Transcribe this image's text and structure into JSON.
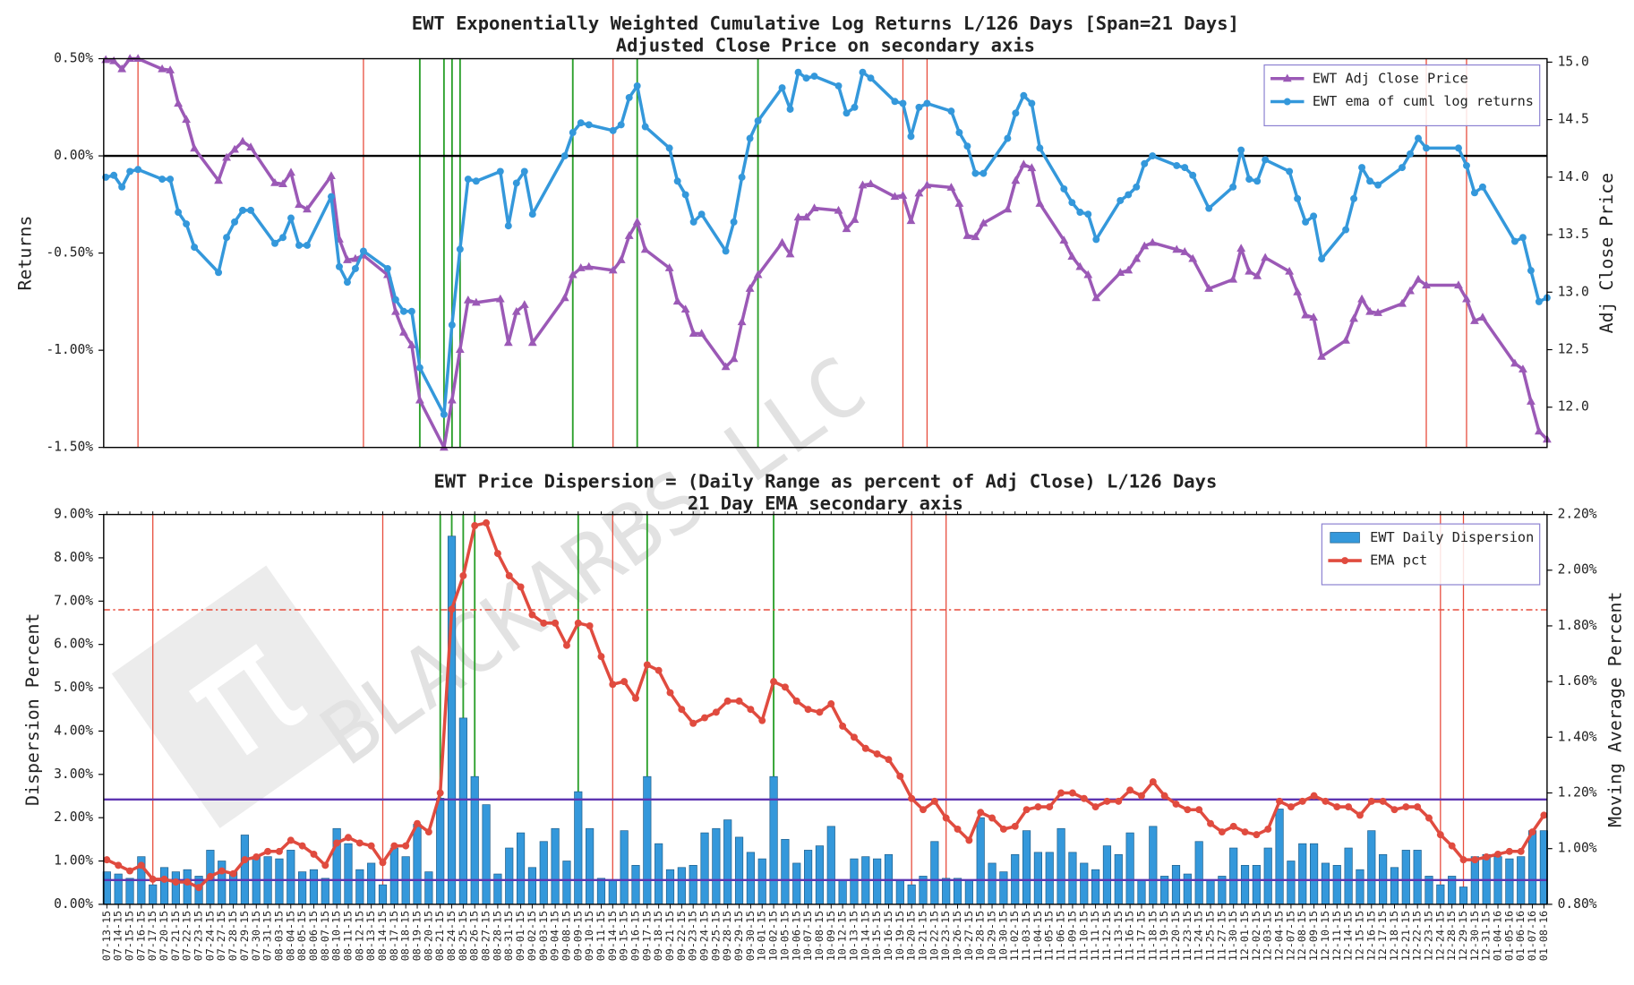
{
  "chart_data": [
    {
      "type": "line",
      "title": "EWT Exponentially Weighted Cumulative Log Returns L/126 Days [Span=21 Days]",
      "subtitle": "Adjusted Close Price on secondary axis",
      "ylabel": "Returns",
      "y2label": "Adj Close Price",
      "ylim": [
        -1.5,
        0.5
      ],
      "yticks": [
        {
          "value": -1.5,
          "label": "-1.50%"
        },
        {
          "value": -1,
          "label": "-1.00%"
        },
        {
          "value": -0.5,
          "label": "-0.50%"
        },
        {
          "value": 0,
          "label": "0.00%"
        },
        {
          "value": 0.5,
          "label": "0.50%"
        }
      ],
      "y2lim": [
        11.65,
        15.03
      ],
      "y2ticks": [
        {
          "value": 12,
          "label": "12.0"
        },
        {
          "value": 12.5,
          "label": "12.5"
        },
        {
          "value": 13,
          "label": "13.0"
        },
        {
          "value": 13.5,
          "label": "13.5"
        },
        {
          "value": 14,
          "label": "14.0"
        },
        {
          "value": 14.5,
          "label": "14.5"
        },
        {
          "value": 15,
          "label": "15.0"
        }
      ],
      "legend": "upper right",
      "hlines": [
        {
          "value": 0,
          "color": "#000000"
        }
      ],
      "vlines": [
        {
          "color": "#e74c3c",
          "x": [
            "07-17-15",
            "08-14-15",
            "09-14-15",
            "10-20-15",
            "10-23-15",
            "12-24-15",
            "12-29-15"
          ]
        },
        {
          "color": "#2ca02c",
          "x": [
            "08-21-15",
            "08-24-15",
            "08-25-15",
            "08-26-15",
            "09-09-15",
            "09-17-15",
            "10-02-15"
          ]
        }
      ],
      "series": [
        {
          "name": "EWT Adj Close Price",
          "color": "#9b59b6",
          "marker": "triangle",
          "axis": "y2",
          "values": [
            15.02,
            15.01,
            14.94,
            15.03,
            15.03,
            14.94,
            14.93,
            14.64,
            14.5,
            14.25,
            13.97,
            14.17,
            14.24,
            14.31,
            14.26,
            13.95,
            13.94,
            14.04,
            13.76,
            13.72,
            14.01,
            13.46,
            13.28,
            13.29,
            13.32,
            13.15,
            12.83,
            12.65,
            12.54,
            12.06,
            11.65,
            12.06,
            12.5,
            12.93,
            12.91,
            12.94,
            12.56,
            12.83,
            12.89,
            12.56,
            12.95,
            13.15,
            13.21,
            13.22,
            13.19,
            13.28,
            13.49,
            13.61,
            13.37,
            13.21,
            12.92,
            12.85,
            12.64,
            12.64,
            12.35,
            12.42,
            12.74,
            13.03,
            13.15,
            13.43,
            13.33,
            13.65,
            13.65,
            13.73,
            13.71,
            13.55,
            13.63,
            13.93,
            13.94,
            13.83,
            13.84,
            13.62,
            13.86,
            13.93,
            13.91,
            13.77,
            13.49,
            13.48,
            13.6,
            13.72,
            13.97,
            14.11,
            14.08,
            13.77,
            13.45,
            13.31,
            13.22,
            13.15,
            12.95,
            13.17,
            13.19,
            13.29,
            13.4,
            13.43,
            13.37,
            13.35,
            13.29,
            13.03,
            13.11,
            13.38,
            13.18,
            13.14,
            13.3,
            13.18,
            13.0,
            12.8,
            12.78,
            12.44,
            12.58,
            12.77,
            12.94,
            12.83,
            12.82,
            12.9,
            13.01,
            13.11,
            13.06,
            13.06,
            12.94,
            12.75,
            12.78,
            12.38,
            12.33,
            12.05,
            11.79,
            11.72
          ]
        },
        {
          "name": "EWT ema of cuml log returns",
          "color": "#3498db",
          "marker": "circle",
          "values": [
            -0.11,
            -0.1,
            -0.16,
            -0.08,
            -0.07,
            -0.12,
            -0.12,
            -0.29,
            -0.35,
            -0.47,
            -0.6,
            -0.42,
            -0.34,
            -0.28,
            -0.28,
            -0.45,
            -0.42,
            -0.32,
            -0.46,
            -0.46,
            -0.21,
            -0.57,
            -0.65,
            -0.58,
            -0.49,
            -0.58,
            -0.74,
            -0.8,
            -0.8,
            -1.09,
            -1.33,
            -0.87,
            -0.48,
            -0.12,
            -0.13,
            -0.08,
            -0.36,
            -0.14,
            -0.08,
            -0.3,
            0.0,
            0.12,
            0.17,
            0.16,
            0.13,
            0.16,
            0.3,
            0.36,
            0.15,
            0.04,
            -0.13,
            -0.2,
            -0.34,
            -0.3,
            -0.49,
            -0.34,
            -0.11,
            0.09,
            0.18,
            0.35,
            0.24,
            0.43,
            0.4,
            0.41,
            0.36,
            0.22,
            0.25,
            0.43,
            0.4,
            0.28,
            0.27,
            0.1,
            0.25,
            0.27,
            0.23,
            0.12,
            0.05,
            -0.09,
            -0.09,
            0.09,
            0.22,
            0.31,
            0.27,
            0.04,
            -0.17,
            -0.24,
            -0.29,
            -0.3,
            -0.43,
            -0.23,
            -0.2,
            -0.16,
            -0.04,
            0.0,
            -0.05,
            -0.06,
            -0.1,
            -0.27,
            -0.16,
            0.03,
            -0.12,
            -0.13,
            -0.02,
            -0.08,
            -0.22,
            -0.34,
            -0.31,
            -0.53,
            -0.38,
            -0.22,
            -0.06,
            -0.13,
            -0.15,
            -0.06,
            0.01,
            0.09,
            0.04,
            0.04,
            -0.05,
            -0.19,
            -0.16,
            -0.44,
            -0.42,
            -0.59,
            -0.75,
            -0.73
          ]
        }
      ]
    },
    {
      "type": "bar",
      "title": "EWT Price Dispersion = (Daily Range as percent of Adj Close) L/126 Days",
      "subtitle": "21 Day EMA secondary axis",
      "ylabel": "Dispersion Percent",
      "y2label": "Moving Average Percent",
      "watermark": "BLACKARBS LLC",
      "categories": [
        "07-13-15",
        "07-14-15",
        "07-15-15",
        "07-16-15",
        "07-17-15",
        "07-20-15",
        "07-21-15",
        "07-22-15",
        "07-23-15",
        "07-24-15",
        "07-27-15",
        "07-28-15",
        "07-29-15",
        "07-30-15",
        "07-31-15",
        "08-03-15",
        "08-04-15",
        "08-05-15",
        "08-06-15",
        "08-07-15",
        "08-10-15",
        "08-11-15",
        "08-12-15",
        "08-13-15",
        "08-14-15",
        "08-17-15",
        "08-18-15",
        "08-19-15",
        "08-20-15",
        "08-21-15",
        "08-24-15",
        "08-25-15",
        "08-26-15",
        "08-27-15",
        "08-28-15",
        "08-31-15",
        "09-01-15",
        "09-02-15",
        "09-03-15",
        "09-04-15",
        "09-08-15",
        "09-09-15",
        "09-10-15",
        "09-11-15",
        "09-14-15",
        "09-15-15",
        "09-16-15",
        "09-17-15",
        "09-18-15",
        "09-21-15",
        "09-22-15",
        "09-23-15",
        "09-24-15",
        "09-25-15",
        "09-28-15",
        "09-29-15",
        "09-30-15",
        "10-01-15",
        "10-02-15",
        "10-05-15",
        "10-06-15",
        "10-07-15",
        "10-08-15",
        "10-09-15",
        "10-12-15",
        "10-13-15",
        "10-14-15",
        "10-15-15",
        "10-16-15",
        "10-19-15",
        "10-20-15",
        "10-21-15",
        "10-22-15",
        "10-23-15",
        "10-26-15",
        "10-27-15",
        "10-28-15",
        "10-29-15",
        "10-30-15",
        "11-02-15",
        "11-03-15",
        "11-04-15",
        "11-05-15",
        "11-06-15",
        "11-09-15",
        "11-10-15",
        "11-11-15",
        "11-12-15",
        "11-13-15",
        "11-16-15",
        "11-17-15",
        "11-18-15",
        "11-19-15",
        "11-20-15",
        "11-23-15",
        "11-24-15",
        "11-25-15",
        "11-27-15",
        "11-30-15",
        "12-01-15",
        "12-02-15",
        "12-03-15",
        "12-04-15",
        "12-07-15",
        "12-08-15",
        "12-09-15",
        "12-10-15",
        "12-11-15",
        "12-14-15",
        "12-15-15",
        "12-16-15",
        "12-17-15",
        "12-18-15",
        "12-21-15",
        "12-22-15",
        "12-23-15",
        "12-24-15",
        "12-28-15",
        "12-29-15",
        "12-30-15",
        "12-31-15",
        "01-04-16",
        "01-05-16",
        "01-06-16",
        "01-07-16",
        "01-08-16"
      ],
      "ylim": [
        0,
        9
      ],
      "yticks": [
        {
          "value": 0,
          "label": "0.00%"
        },
        {
          "value": 1,
          "label": "1.00%"
        },
        {
          "value": 2,
          "label": "2.00%"
        },
        {
          "value": 3,
          "label": "3.00%"
        },
        {
          "value": 4,
          "label": "4.00%"
        },
        {
          "value": 5,
          "label": "5.00%"
        },
        {
          "value": 6,
          "label": "6.00%"
        },
        {
          "value": 7,
          "label": "7.00%"
        },
        {
          "value": 8,
          "label": "8.00%"
        },
        {
          "value": 9,
          "label": "9.00%"
        }
      ],
      "y2lim": [
        0.8,
        2.2
      ],
      "y2ticks": [
        {
          "value": 0.8,
          "label": "0.80%"
        },
        {
          "value": 1.0,
          "label": "1.00%"
        },
        {
          "value": 1.2,
          "label": "1.20%"
        },
        {
          "value": 1.4,
          "label": "1.40%"
        },
        {
          "value": 1.6,
          "label": "1.60%"
        },
        {
          "value": 1.8,
          "label": "1.80%"
        },
        {
          "value": 2.0,
          "label": "2.00%"
        },
        {
          "value": 2.2,
          "label": "2.20%"
        }
      ],
      "legend": "upper right",
      "hlines": [
        {
          "value": 6.8,
          "color": "#e74c3c",
          "dash": "dashdot"
        },
        {
          "value": 2.42,
          "color": "#5e35b1"
        },
        {
          "value": 0.56,
          "color": "#5e35b1"
        }
      ],
      "vlines": [
        {
          "color": "#e74c3c",
          "x": [
            "07-17-15",
            "08-14-15",
            "09-14-15",
            "10-20-15",
            "10-23-15",
            "12-24-15",
            "12-29-15"
          ]
        },
        {
          "color": "#2ca02c",
          "x": [
            "08-21-15",
            "08-24-15",
            "08-25-15",
            "08-26-15",
            "09-09-15",
            "09-17-15",
            "10-02-15"
          ]
        }
      ],
      "series": [
        {
          "name": "EWT Daily Dispersion",
          "type": "bar",
          "color": "#3498db",
          "values": [
            0.75,
            0.7,
            0.6,
            1.1,
            0.45,
            0.85,
            0.75,
            0.8,
            0.65,
            1.25,
            1.0,
            0.75,
            1.6,
            1.1,
            1.1,
            1.05,
            1.25,
            0.75,
            0.8,
            0.6,
            1.75,
            1.4,
            0.8,
            0.95,
            0.45,
            1.3,
            1.1,
            1.85,
            0.75,
            2.45,
            8.5,
            4.3,
            2.95,
            2.3,
            0.7,
            1.3,
            1.65,
            0.85,
            1.45,
            1.75,
            1.0,
            2.6,
            1.75,
            0.6,
            0.55,
            1.7,
            0.9,
            2.95,
            1.4,
            0.8,
            0.85,
            0.9,
            1.65,
            1.75,
            1.95,
            1.55,
            1.2,
            1.05,
            2.95,
            1.5,
            0.95,
            1.25,
            1.35,
            1.8,
            0.55,
            1.05,
            1.1,
            1.05,
            1.15,
            0.55,
            0.45,
            0.65,
            1.45,
            0.6,
            0.6,
            0.55,
            2.0,
            0.95,
            0.75,
            1.15,
            1.7,
            1.2,
            1.2,
            1.75,
            1.2,
            0.95,
            0.8,
            1.35,
            1.15,
            1.65,
            0.55,
            1.8,
            0.65,
            0.9,
            0.7,
            1.45,
            0.55,
            0.65,
            1.3,
            0.9,
            0.9,
            1.3,
            2.2,
            1.0,
            1.4,
            1.4,
            0.95,
            0.9,
            1.3,
            0.8,
            1.7,
            1.15,
            0.85,
            1.25,
            1.25,
            0.65,
            0.45,
            0.65,
            0.4,
            1.1,
            1.15,
            1.1,
            1.05,
            1.1,
            1.7,
            1.7
          ]
        },
        {
          "name": "EMA pct",
          "type": "line",
          "axis": "y2",
          "color": "#e04b3f",
          "marker": "circle",
          "values": [
            0.96,
            0.94,
            0.92,
            0.94,
            0.89,
            0.89,
            0.88,
            0.88,
            0.86,
            0.9,
            0.92,
            0.91,
            0.96,
            0.97,
            0.99,
            0.99,
            1.03,
            1.01,
            0.98,
            0.94,
            1.02,
            1.04,
            1.02,
            1.01,
            0.95,
            1.01,
            1.01,
            1.09,
            1.06,
            1.2,
            1.86,
            1.98,
            2.16,
            2.17,
            2.06,
            1.98,
            1.94,
            1.84,
            1.81,
            1.81,
            1.73,
            1.81,
            1.8,
            1.69,
            1.59,
            1.6,
            1.54,
            1.66,
            1.64,
            1.56,
            1.5,
            1.45,
            1.47,
            1.49,
            1.53,
            1.53,
            1.5,
            1.46,
            1.6,
            1.58,
            1.53,
            1.5,
            1.49,
            1.52,
            1.44,
            1.4,
            1.36,
            1.34,
            1.32,
            1.26,
            1.18,
            1.14,
            1.17,
            1.11,
            1.07,
            1.03,
            1.13,
            1.11,
            1.07,
            1.08,
            1.14,
            1.15,
            1.15,
            1.2,
            1.2,
            1.18,
            1.15,
            1.17,
            1.17,
            1.21,
            1.19,
            1.24,
            1.19,
            1.16,
            1.14,
            1.14,
            1.09,
            1.06,
            1.08,
            1.06,
            1.05,
            1.07,
            1.17,
            1.15,
            1.17,
            1.19,
            1.17,
            1.15,
            1.15,
            1.12,
            1.17,
            1.17,
            1.14,
            1.15,
            1.15,
            1.11,
            1.05,
            1.01,
            0.96,
            0.96,
            0.97,
            0.98,
            0.99,
            0.99,
            1.06,
            1.12
          ]
        }
      ]
    }
  ]
}
